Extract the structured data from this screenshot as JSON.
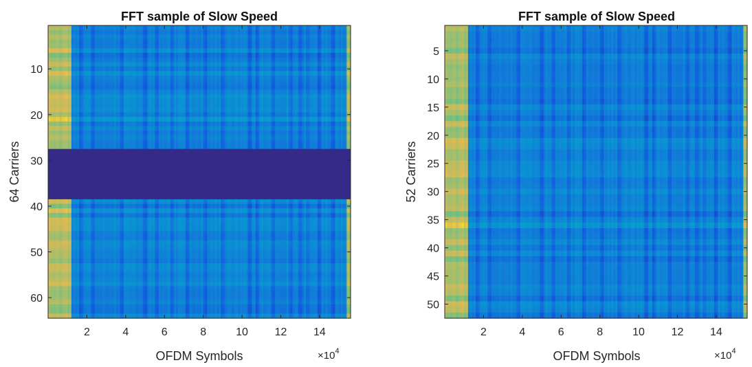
{
  "chart_data": [
    {
      "type": "heatmap",
      "title": "FFT sample of Slow Speed",
      "xlabel": "OFDM Symbols",
      "ylabel": "64 Carriers",
      "x_multiplier_base": "×10",
      "x_multiplier_exp": "4",
      "xlim": [
        0,
        15.6
      ],
      "ylim": [
        0.5,
        64.5
      ],
      "y_reversed": true,
      "x_ticks": [
        2,
        4,
        6,
        8,
        10,
        12,
        14
      ],
      "x_tick_labels": [
        "2",
        "4",
        "6",
        "8",
        "10",
        "12",
        "14"
      ],
      "y_ticks": [
        10,
        20,
        30,
        40,
        50,
        60
      ],
      "y_tick_labels": [
        "10",
        "20",
        "30",
        "40",
        "50",
        "60"
      ],
      "rows": 64,
      "colormap": "parula",
      "null_band_rows": [
        28,
        38
      ],
      "bright_edge_columns_x": [
        [
          0,
          1.2
        ],
        [
          15.4,
          15.6
        ]
      ],
      "dark_stripe_x": [
        1.7,
        2.3,
        3.8,
        5.0,
        5.6,
        6.4,
        7.2,
        8.1,
        9.0,
        10.4,
        10.8,
        11.6,
        12.5,
        13.0,
        13.4,
        14.0,
        14.7
      ]
    },
    {
      "type": "heatmap",
      "title": "FFT sample of Slow Speed",
      "xlabel": "OFDM Symbols",
      "ylabel": "52 Carriers",
      "x_multiplier_base": "×10",
      "x_multiplier_exp": "4",
      "xlim": [
        0,
        15.6
      ],
      "ylim": [
        0.5,
        52.5
      ],
      "y_reversed": true,
      "x_ticks": [
        2,
        4,
        6,
        8,
        10,
        12,
        14
      ],
      "x_tick_labels": [
        "2",
        "4",
        "6",
        "8",
        "10",
        "12",
        "14"
      ],
      "y_ticks": [
        5,
        10,
        15,
        20,
        25,
        30,
        35,
        40,
        45,
        50
      ],
      "y_tick_labels": [
        "5",
        "10",
        "15",
        "20",
        "25",
        "30",
        "35",
        "40",
        "45",
        "50"
      ],
      "rows": 52,
      "colormap": "parula",
      "null_band_rows": null,
      "bright_edge_columns_x": [
        [
          0,
          1.2
        ],
        [
          15.4,
          15.6
        ]
      ],
      "dark_stripe_x": [
        1.7,
        2.3,
        3.8,
        5.0,
        5.6,
        6.4,
        7.2,
        8.1,
        9.0,
        10.4,
        10.8,
        11.6,
        12.5,
        13.0,
        13.4,
        14.0,
        14.7
      ]
    }
  ],
  "colors": {
    "null_band": "#352a87",
    "bright": "#f9c12f",
    "base_blue": "#1d74cf"
  }
}
